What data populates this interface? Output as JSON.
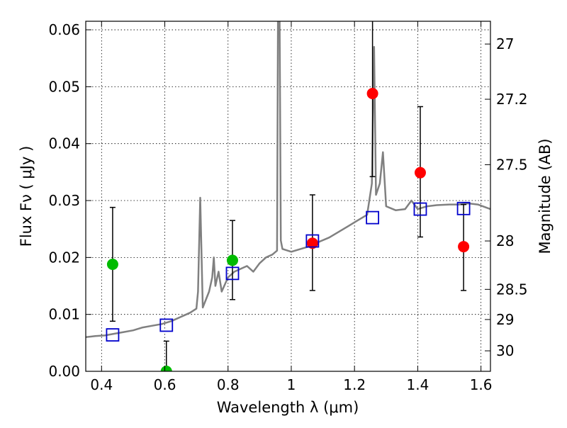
{
  "chart_data": {
    "type": "scatter",
    "xlabel": "Wavelength  λ (μm)",
    "ylabel": "Flux  Fν  ( μJy )",
    "ylabel_right": "Magnitude (AB)",
    "xlim": [
      0.35,
      1.63
    ],
    "ylim": [
      0.0,
      0.0615
    ],
    "grid": true,
    "x_ticks": [
      0.4,
      0.6,
      0.8,
      1.0,
      1.2,
      1.4,
      1.6
    ],
    "x_tick_labels": [
      "0.4",
      "0.6",
      "0.8",
      "1",
      "1.2",
      "1.4",
      "1.6"
    ],
    "y_ticks": [
      0.0,
      0.01,
      0.02,
      0.03,
      0.04,
      0.05,
      0.06
    ],
    "y_tick_labels": [
      "0.00",
      "0.01",
      "0.02",
      "0.03",
      "0.04",
      "0.05",
      "0.06"
    ],
    "right_axis_ticks": [
      {
        "label": "27",
        "flux": 0.0575
      },
      {
        "label": "27.2",
        "flux": 0.0478
      },
      {
        "label": "27.5",
        "flux": 0.0363
      },
      {
        "label": "28",
        "flux": 0.0229
      },
      {
        "label": "28.5",
        "flux": 0.0144
      },
      {
        "label": "29",
        "flux": 0.0091
      },
      {
        "label": "30",
        "flux": 0.0036
      }
    ],
    "series": [
      {
        "color": "#808080",
        "marker": "line",
        "points": [
          [
            0.35,
            0.006
          ],
          [
            0.38,
            0.0062
          ],
          [
            0.41,
            0.0063
          ],
          [
            0.44,
            0.0066
          ],
          [
            0.47,
            0.0069
          ],
          [
            0.5,
            0.0072
          ],
          [
            0.53,
            0.0077
          ],
          [
            0.56,
            0.008
          ],
          [
            0.59,
            0.0083
          ],
          [
            0.62,
            0.0088
          ],
          [
            0.64,
            0.0093
          ],
          [
            0.66,
            0.0098
          ],
          [
            0.68,
            0.0103
          ],
          [
            0.7,
            0.011
          ],
          [
            0.705,
            0.014
          ],
          [
            0.712,
            0.0305
          ],
          [
            0.72,
            0.0112
          ],
          [
            0.74,
            0.014
          ],
          [
            0.75,
            0.0165
          ],
          [
            0.755,
            0.02
          ],
          [
            0.76,
            0.015
          ],
          [
            0.77,
            0.0175
          ],
          [
            0.78,
            0.014
          ],
          [
            0.8,
            0.0165
          ],
          [
            0.82,
            0.0175
          ],
          [
            0.84,
            0.018
          ],
          [
            0.86,
            0.0185
          ],
          [
            0.88,
            0.0175
          ],
          [
            0.9,
            0.019
          ],
          [
            0.92,
            0.02
          ],
          [
            0.94,
            0.0205
          ],
          [
            0.955,
            0.0212
          ],
          [
            0.958,
            0.062
          ],
          [
            0.963,
            0.062
          ],
          [
            0.967,
            0.023
          ],
          [
            0.972,
            0.0215
          ],
          [
            1.0,
            0.021
          ],
          [
            1.03,
            0.0215
          ],
          [
            1.06,
            0.022
          ],
          [
            1.09,
            0.0228
          ],
          [
            1.12,
            0.0235
          ],
          [
            1.15,
            0.0245
          ],
          [
            1.18,
            0.0255
          ],
          [
            1.21,
            0.0265
          ],
          [
            1.24,
            0.0275
          ],
          [
            1.255,
            0.033
          ],
          [
            1.262,
            0.057
          ],
          [
            1.268,
            0.031
          ],
          [
            1.28,
            0.033
          ],
          [
            1.29,
            0.0385
          ],
          [
            1.3,
            0.029
          ],
          [
            1.33,
            0.0283
          ],
          [
            1.36,
            0.0285
          ],
          [
            1.38,
            0.03
          ],
          [
            1.4,
            0.0285
          ],
          [
            1.43,
            0.029
          ],
          [
            1.46,
            0.0292
          ],
          [
            1.5,
            0.0293
          ],
          [
            1.53,
            0.0293
          ],
          [
            1.56,
            0.0295
          ],
          [
            1.59,
            0.0293
          ],
          [
            1.63,
            0.0285
          ]
        ]
      },
      {
        "color": "#00bb00",
        "marker": "circle",
        "points": [
          {
            "x": 0.435,
            "y": 0.0188,
            "err_lo": 0.0088,
            "err_hi": 0.0288
          },
          {
            "x": 0.605,
            "y": 0.0,
            "err_lo": 0.0,
            "err_hi": 0.0053
          },
          {
            "x": 0.814,
            "y": 0.0195,
            "err_lo": 0.0126,
            "err_hi": 0.0265
          }
        ]
      },
      {
        "color": "#ff0000",
        "marker": "circle",
        "points": [
          {
            "x": 1.067,
            "y": 0.0225,
            "err_lo": 0.0142,
            "err_hi": 0.031
          },
          {
            "x": 1.257,
            "y": 0.0488,
            "err_lo": 0.0342,
            "err_hi": 0.064
          },
          {
            "x": 1.408,
            "y": 0.0349,
            "err_lo": 0.0236,
            "err_hi": 0.0465
          },
          {
            "x": 1.545,
            "y": 0.0219,
            "err_lo": 0.0142,
            "err_hi": 0.0293
          }
        ]
      },
      {
        "color": "#0000cc",
        "marker": "square",
        "points": [
          {
            "x": 0.435,
            "y": 0.0064
          },
          {
            "x": 0.605,
            "y": 0.0081
          },
          {
            "x": 0.814,
            "y": 0.0172
          },
          {
            "x": 1.067,
            "y": 0.0229
          },
          {
            "x": 1.257,
            "y": 0.027
          },
          {
            "x": 1.408,
            "y": 0.0285
          },
          {
            "x": 1.545,
            "y": 0.0286
          }
        ]
      }
    ]
  }
}
